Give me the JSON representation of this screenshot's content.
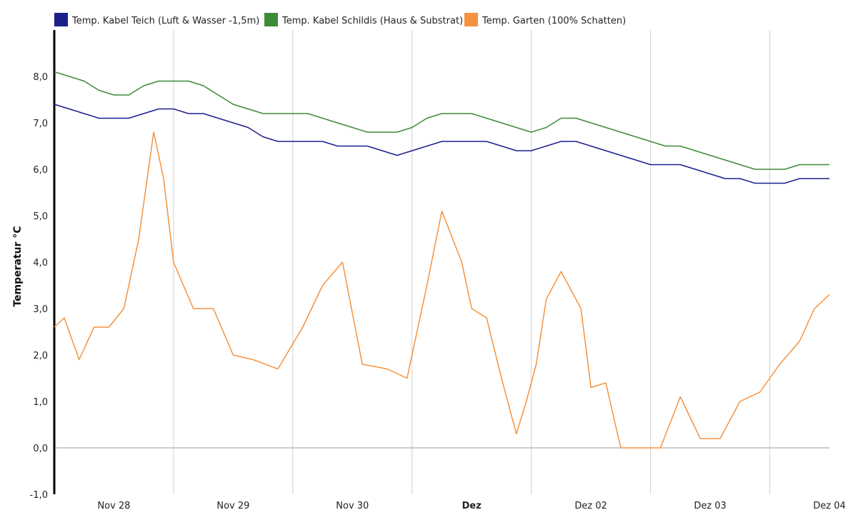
{
  "chart_data": {
    "type": "line",
    "ylabel": "Temperatur °C",
    "ylim": [
      -1.0,
      9.0
    ],
    "y_ticks": [
      "-1,0",
      "0,0",
      "1,0",
      "2,0",
      "3,0",
      "4,0",
      "5,0",
      "6,0",
      "7,0",
      "8,0"
    ],
    "x_range": [
      "2024-11-27T12:00",
      "2024-12-04T00:00"
    ],
    "x_ticks": [
      {
        "label": "Nov 28",
        "date": "2024-11-28T00:00",
        "bold": false
      },
      {
        "label": "Nov 29",
        "date": "2024-11-29T00:00",
        "bold": false
      },
      {
        "label": "Nov 30",
        "date": "2024-11-30T00:00",
        "bold": false
      },
      {
        "label": "Dez",
        "date": "2024-12-01T00:00",
        "bold": true
      },
      {
        "label": "Dez 02",
        "date": "2024-12-02T00:00",
        "bold": false
      },
      {
        "label": "Dez 03",
        "date": "2024-12-03T00:00",
        "bold": false
      },
      {
        "label": "Dez 04",
        "date": "2024-12-04T00:00",
        "bold": false
      }
    ],
    "grid_dates": [
      "2024-11-28T12:00",
      "2024-11-29T12:00",
      "2024-11-30T12:00",
      "2024-12-01T12:00",
      "2024-12-02T12:00",
      "2024-12-03T12:00"
    ],
    "grid": true,
    "legend_position": "top-left",
    "series": [
      {
        "name": "Temp. Kabel Teich (Luft & Wasser -1,5m)",
        "color": "#1a1f8c",
        "x": [
          "2024-11-27T12:00",
          "2024-11-27T15:00",
          "2024-11-27T18:00",
          "2024-11-27T21:00",
          "2024-11-28T00:00",
          "2024-11-28T03:00",
          "2024-11-28T06:00",
          "2024-11-28T09:00",
          "2024-11-28T12:00",
          "2024-11-28T15:00",
          "2024-11-28T18:00",
          "2024-11-28T21:00",
          "2024-11-29T00:00",
          "2024-11-29T03:00",
          "2024-11-29T06:00",
          "2024-11-29T09:00",
          "2024-11-29T12:00",
          "2024-11-29T15:00",
          "2024-11-29T18:00",
          "2024-11-29T21:00",
          "2024-11-30T00:00",
          "2024-11-30T03:00",
          "2024-11-30T06:00",
          "2024-11-30T09:00",
          "2024-11-30T12:00",
          "2024-11-30T15:00",
          "2024-11-30T18:00",
          "2024-11-30T21:00",
          "2024-12-01T00:00",
          "2024-12-01T03:00",
          "2024-12-01T06:00",
          "2024-12-01T09:00",
          "2024-12-01T12:00",
          "2024-12-01T15:00",
          "2024-12-01T18:00",
          "2024-12-01T21:00",
          "2024-12-02T00:00",
          "2024-12-02T03:00",
          "2024-12-02T06:00",
          "2024-12-02T09:00",
          "2024-12-02T12:00",
          "2024-12-02T15:00",
          "2024-12-02T18:00",
          "2024-12-02T21:00",
          "2024-12-03T00:00",
          "2024-12-03T03:00",
          "2024-12-03T06:00",
          "2024-12-03T09:00",
          "2024-12-03T12:00",
          "2024-12-03T15:00",
          "2024-12-03T18:00",
          "2024-12-03T21:00",
          "2024-12-04T00:00"
        ],
        "y": [
          7.4,
          7.3,
          7.2,
          7.1,
          7.1,
          7.1,
          7.2,
          7.3,
          7.3,
          7.2,
          7.2,
          7.1,
          7.0,
          6.9,
          6.7,
          6.6,
          6.6,
          6.6,
          6.6,
          6.5,
          6.5,
          6.5,
          6.4,
          6.3,
          6.4,
          6.5,
          6.6,
          6.6,
          6.6,
          6.6,
          6.5,
          6.4,
          6.4,
          6.5,
          6.6,
          6.6,
          6.5,
          6.4,
          6.3,
          6.2,
          6.1,
          6.1,
          6.1,
          6.0,
          5.9,
          5.8,
          5.8,
          5.7,
          5.7,
          5.7,
          5.8,
          5.8,
          5.8
        ]
      },
      {
        "name": "Temp. Kabel Schildis (Haus & Substrat)",
        "color": "#3d8b37",
        "x": [
          "2024-11-27T12:00",
          "2024-11-27T15:00",
          "2024-11-27T18:00",
          "2024-11-27T21:00",
          "2024-11-28T00:00",
          "2024-11-28T03:00",
          "2024-11-28T06:00",
          "2024-11-28T09:00",
          "2024-11-28T12:00",
          "2024-11-28T15:00",
          "2024-11-28T18:00",
          "2024-11-28T21:00",
          "2024-11-29T00:00",
          "2024-11-29T03:00",
          "2024-11-29T06:00",
          "2024-11-29T09:00",
          "2024-11-29T12:00",
          "2024-11-29T15:00",
          "2024-11-29T18:00",
          "2024-11-29T21:00",
          "2024-11-30T00:00",
          "2024-11-30T03:00",
          "2024-11-30T06:00",
          "2024-11-30T09:00",
          "2024-11-30T12:00",
          "2024-11-30T15:00",
          "2024-11-30T18:00",
          "2024-11-30T21:00",
          "2024-12-01T00:00",
          "2024-12-01T03:00",
          "2024-12-01T06:00",
          "2024-12-01T09:00",
          "2024-12-01T12:00",
          "2024-12-01T15:00",
          "2024-12-01T18:00",
          "2024-12-01T21:00",
          "2024-12-02T00:00",
          "2024-12-02T03:00",
          "2024-12-02T06:00",
          "2024-12-02T09:00",
          "2024-12-02T12:00",
          "2024-12-02T15:00",
          "2024-12-02T18:00",
          "2024-12-02T21:00",
          "2024-12-03T00:00",
          "2024-12-03T03:00",
          "2024-12-03T06:00",
          "2024-12-03T09:00",
          "2024-12-03T12:00",
          "2024-12-03T15:00",
          "2024-12-03T18:00",
          "2024-12-03T21:00",
          "2024-12-04T00:00"
        ],
        "y": [
          8.1,
          8.0,
          7.9,
          7.7,
          7.6,
          7.6,
          7.8,
          7.9,
          7.9,
          7.9,
          7.8,
          7.6,
          7.4,
          7.3,
          7.2,
          7.2,
          7.2,
          7.2,
          7.1,
          7.0,
          6.9,
          6.8,
          6.8,
          6.8,
          6.9,
          7.1,
          7.2,
          7.2,
          7.2,
          7.1,
          7.0,
          6.9,
          6.8,
          6.9,
          7.1,
          7.1,
          7.0,
          6.9,
          6.8,
          6.7,
          6.6,
          6.5,
          6.5,
          6.4,
          6.3,
          6.2,
          6.1,
          6.0,
          6.0,
          6.0,
          6.1,
          6.1,
          6.1
        ]
      },
      {
        "name": "Temp. Garten (100% Schatten)",
        "color": "#f5923e",
        "x": [
          "2024-11-27T12:00",
          "2024-11-27T14:00",
          "2024-11-27T17:00",
          "2024-11-27T20:00",
          "2024-11-27T23:00",
          "2024-11-28T02:00",
          "2024-11-28T05:00",
          "2024-11-28T08:00",
          "2024-11-28T10:00",
          "2024-11-28T12:00",
          "2024-11-28T16:00",
          "2024-11-28T20:00",
          "2024-11-29T00:00",
          "2024-11-29T04:00",
          "2024-11-29T09:00",
          "2024-11-29T14:00",
          "2024-11-29T18:00",
          "2024-11-29T22:00",
          "2024-11-30T02:00",
          "2024-11-30T07:00",
          "2024-11-30T11:00",
          "2024-11-30T15:00",
          "2024-11-30T18:00",
          "2024-11-30T22:00",
          "2024-12-01T00:00",
          "2024-12-01T03:00",
          "2024-12-01T06:00",
          "2024-12-01T09:00",
          "2024-12-01T11:00",
          "2024-12-01T13:00",
          "2024-12-01T15:00",
          "2024-12-01T18:00",
          "2024-12-01T22:00",
          "2024-12-02T00:00",
          "2024-12-02T03:00",
          "2024-12-02T06:00",
          "2024-12-02T09:00",
          "2024-12-02T14:00",
          "2024-12-02T18:00",
          "2024-12-02T22:00",
          "2024-12-03T02:00",
          "2024-12-03T06:00",
          "2024-12-03T10:00",
          "2024-12-03T14:00",
          "2024-12-03T18:00",
          "2024-12-03T21:00",
          "2024-12-04T00:00"
        ],
        "y": [
          2.6,
          2.8,
          1.9,
          2.6,
          2.6,
          3.0,
          4.5,
          6.8,
          5.8,
          4.0,
          3.0,
          3.0,
          2.0,
          1.9,
          1.7,
          2.6,
          3.5,
          4.0,
          1.8,
          1.7,
          1.5,
          3.5,
          5.1,
          4.0,
          3.0,
          2.8,
          1.5,
          0.3,
          1.0,
          1.8,
          3.2,
          3.8,
          3.0,
          1.3,
          1.4,
          0.0,
          0.0,
          0.0,
          1.1,
          0.2,
          0.2,
          1.0,
          1.2,
          1.8,
          2.3,
          3.0,
          3.3
        ]
      }
    ]
  }
}
